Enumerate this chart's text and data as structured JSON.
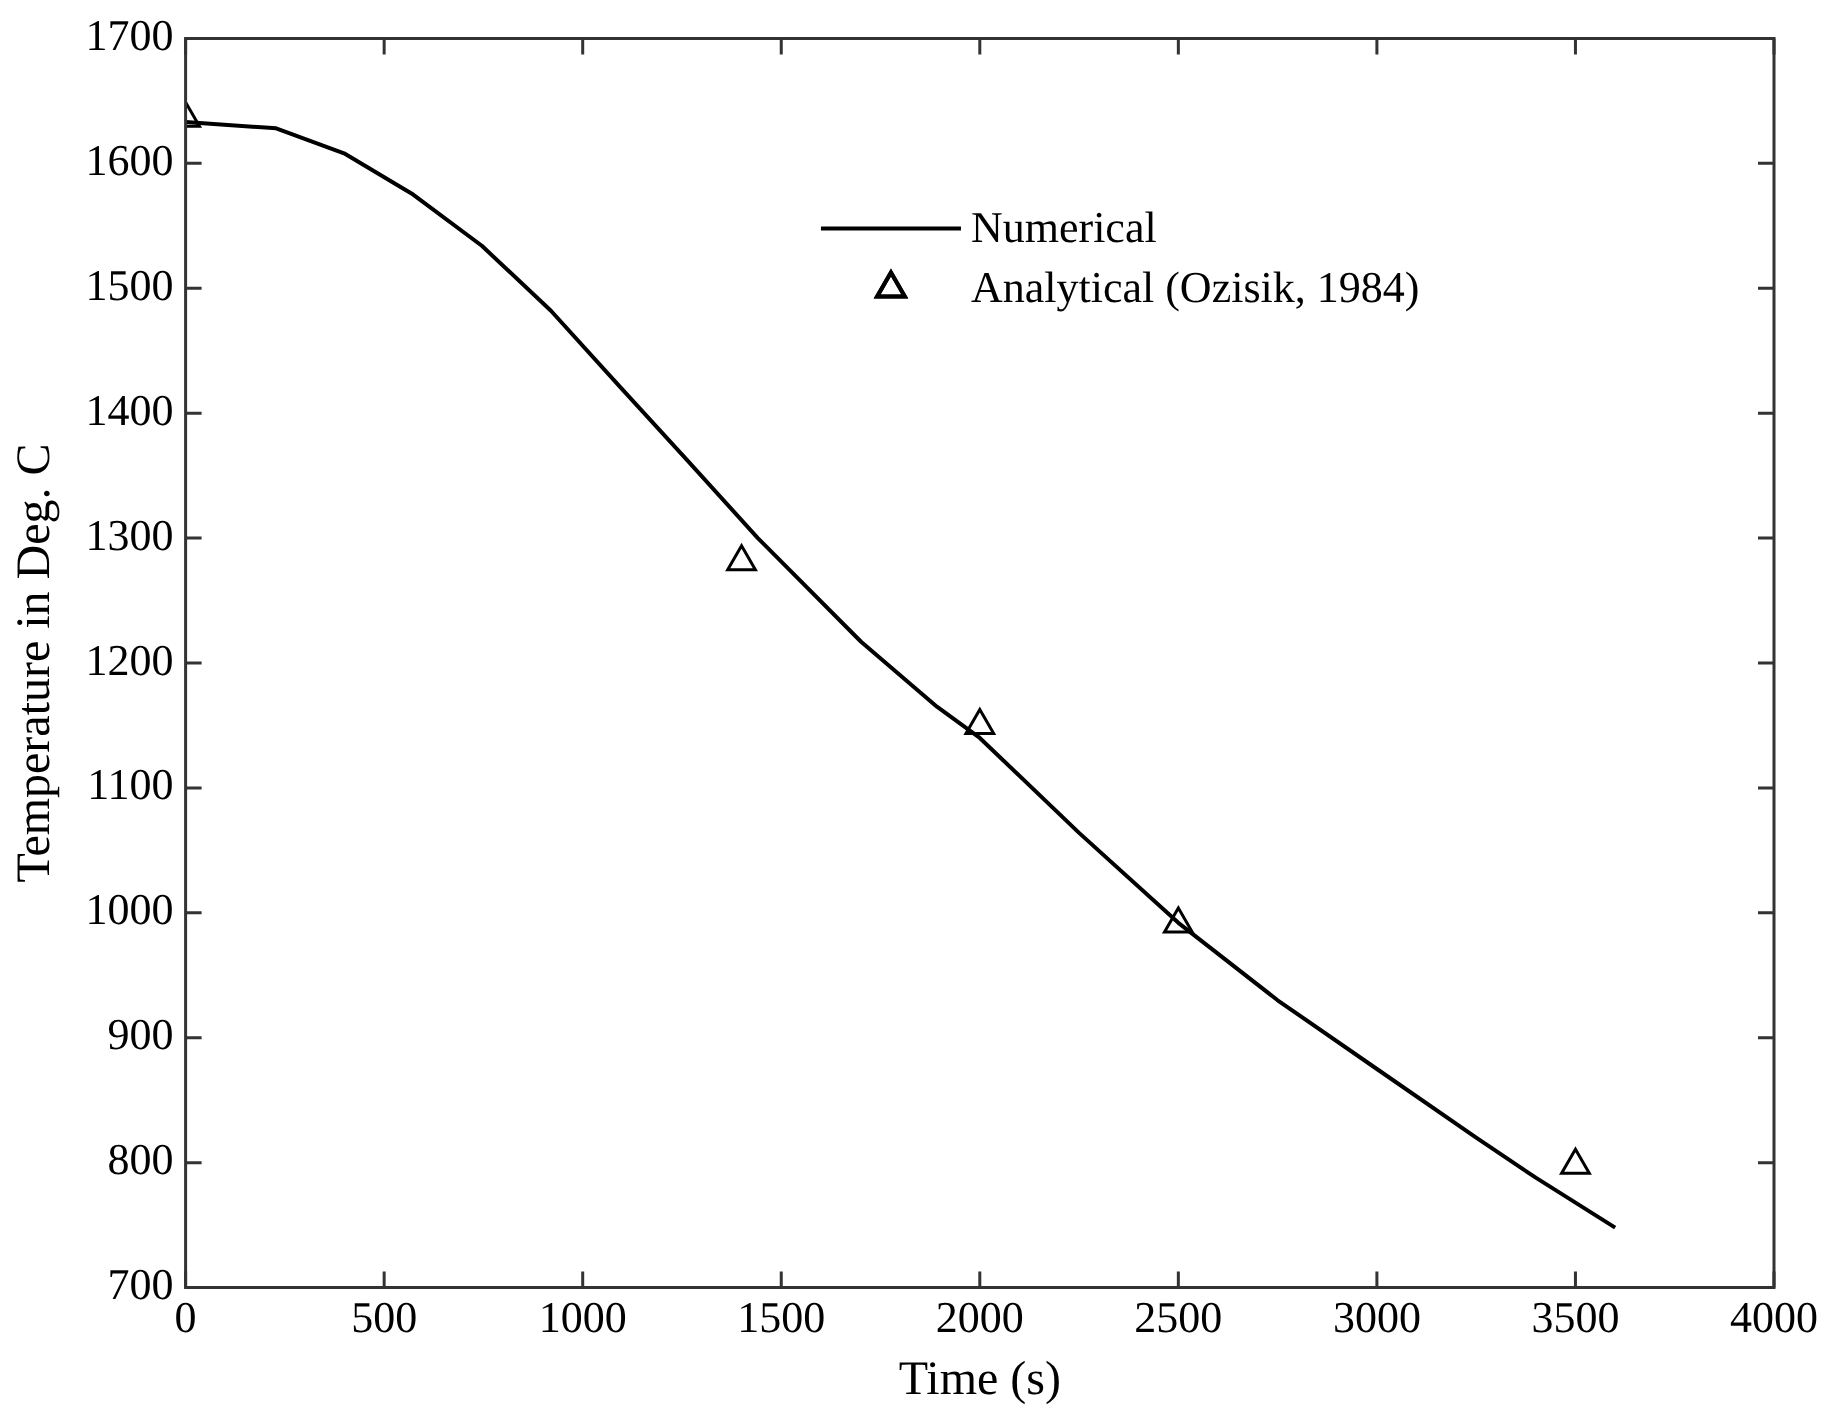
{
  "chart_data": {
    "type": "line",
    "xlabel": "Time (s)",
    "ylabel": "Temperature in Deg. C",
    "xlim": [
      0,
      4000
    ],
    "xticks": [
      0,
      500,
      1000,
      1500,
      2000,
      2500,
      3000,
      3500,
      4000
    ],
    "ylim": [
      700,
      1700
    ],
    "yticks": [
      700,
      800,
      900,
      1000,
      1100,
      1200,
      1300,
      1400,
      1500,
      1600,
      1700
    ],
    "grid": false,
    "legend": "top right",
    "series": [
      {
        "name": "Numerical",
        "color": "#000000",
        "marker": "none",
        "line_style": "solid",
        "x": [
          0,
          228,
          399,
          573,
          746,
          920,
          1094,
          1267,
          1441,
          1701,
          1892,
          2000,
          2250,
          2500,
          2750,
          3000,
          3250,
          3400,
          3600
        ],
        "values": [
          1633,
          1628,
          1608,
          1575,
          1534,
          1482,
          1421,
          1361,
          1300,
          1217,
          1165,
          1140,
          1064,
          992,
          930,
          875,
          820,
          788,
          748
        ]
      },
      {
        "name": "Analytical (Ozisik, 1984)",
        "type": "scatter",
        "color": "#000000",
        "marker": "triangle",
        "x": [
          0,
          1400,
          2000,
          2500,
          3500
        ],
        "values": [
          1636,
          1281,
          1150,
          991,
          798
        ]
      }
    ]
  }
}
